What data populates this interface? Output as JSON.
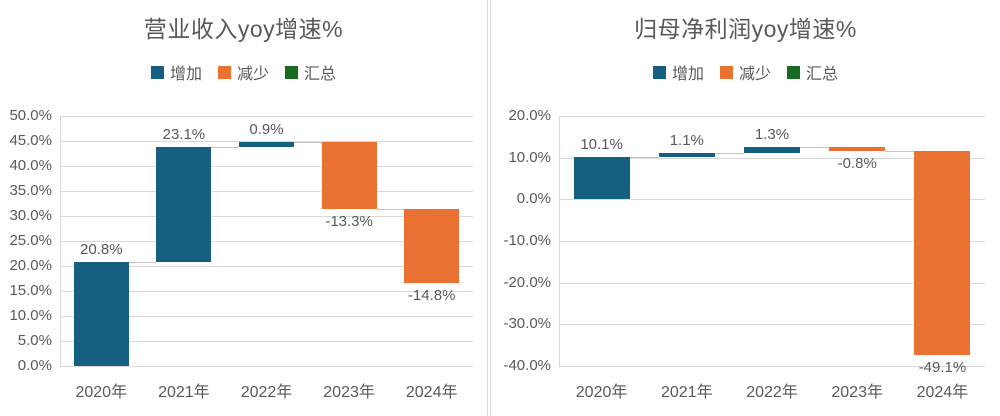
{
  "app": {
    "background": "#FFFFFF",
    "divider_color": "#D9D9D9"
  },
  "style": {
    "text_color": "#595959",
    "grid_color": "#D9D9D9",
    "connector_color": "#C6C6C6",
    "increase_color": "#156082",
    "decrease_color": "#E97132",
    "total_color": "#196B24"
  },
  "chart_data": [
    {
      "type": "bar",
      "subtype": "waterfall",
      "title": "营业收入yoy增速%",
      "legend": [
        {
          "label": "增加",
          "color": "#156082"
        },
        {
          "label": "减少",
          "color": "#E97132"
        },
        {
          "label": "汇总",
          "color": "#196B24"
        }
      ],
      "legend_position": "top",
      "grid": true,
      "categories": [
        "2020年",
        "2021年",
        "2022年",
        "2023年",
        "2024年"
      ],
      "values": [
        20.8,
        23.1,
        0.9,
        -13.3,
        -14.8
      ],
      "value_labels": [
        "20.8%",
        "23.1%",
        "0.9%",
        "-13.3%",
        "-14.8%"
      ],
      "cumulative": [
        20.8,
        43.9,
        44.8,
        31.5,
        16.7
      ],
      "ylim": [
        0,
        50
      ],
      "ytick_step": 5,
      "ytick_labels": [
        "0.0%",
        "5.0%",
        "10.0%",
        "15.0%",
        "20.0%",
        "25.0%",
        "30.0%",
        "35.0%",
        "40.0%",
        "45.0%",
        "50.0%"
      ]
    },
    {
      "type": "bar",
      "subtype": "waterfall",
      "title": "归母净利润yoy增速%",
      "legend": [
        {
          "label": "增加",
          "color": "#156082"
        },
        {
          "label": "减少",
          "color": "#E97132"
        },
        {
          "label": "汇总",
          "color": "#196B24"
        }
      ],
      "legend_position": "top",
      "grid": true,
      "categories": [
        "2020年",
        "2021年",
        "2022年",
        "2023年",
        "2024年"
      ],
      "values": [
        10.1,
        1.1,
        1.3,
        -0.8,
        -49.1
      ],
      "value_labels": [
        "10.1%",
        "1.1%",
        "1.3%",
        "-0.8%",
        "-49.1%"
      ],
      "cumulative": [
        10.1,
        11.2,
        12.5,
        11.7,
        -37.4
      ],
      "ylim": [
        -40,
        20
      ],
      "ytick_step": 10,
      "ytick_labels": [
        "-40.0%",
        "-30.0%",
        "-20.0%",
        "-10.0%",
        "0.0%",
        "10.0%",
        "20.0%"
      ]
    }
  ]
}
